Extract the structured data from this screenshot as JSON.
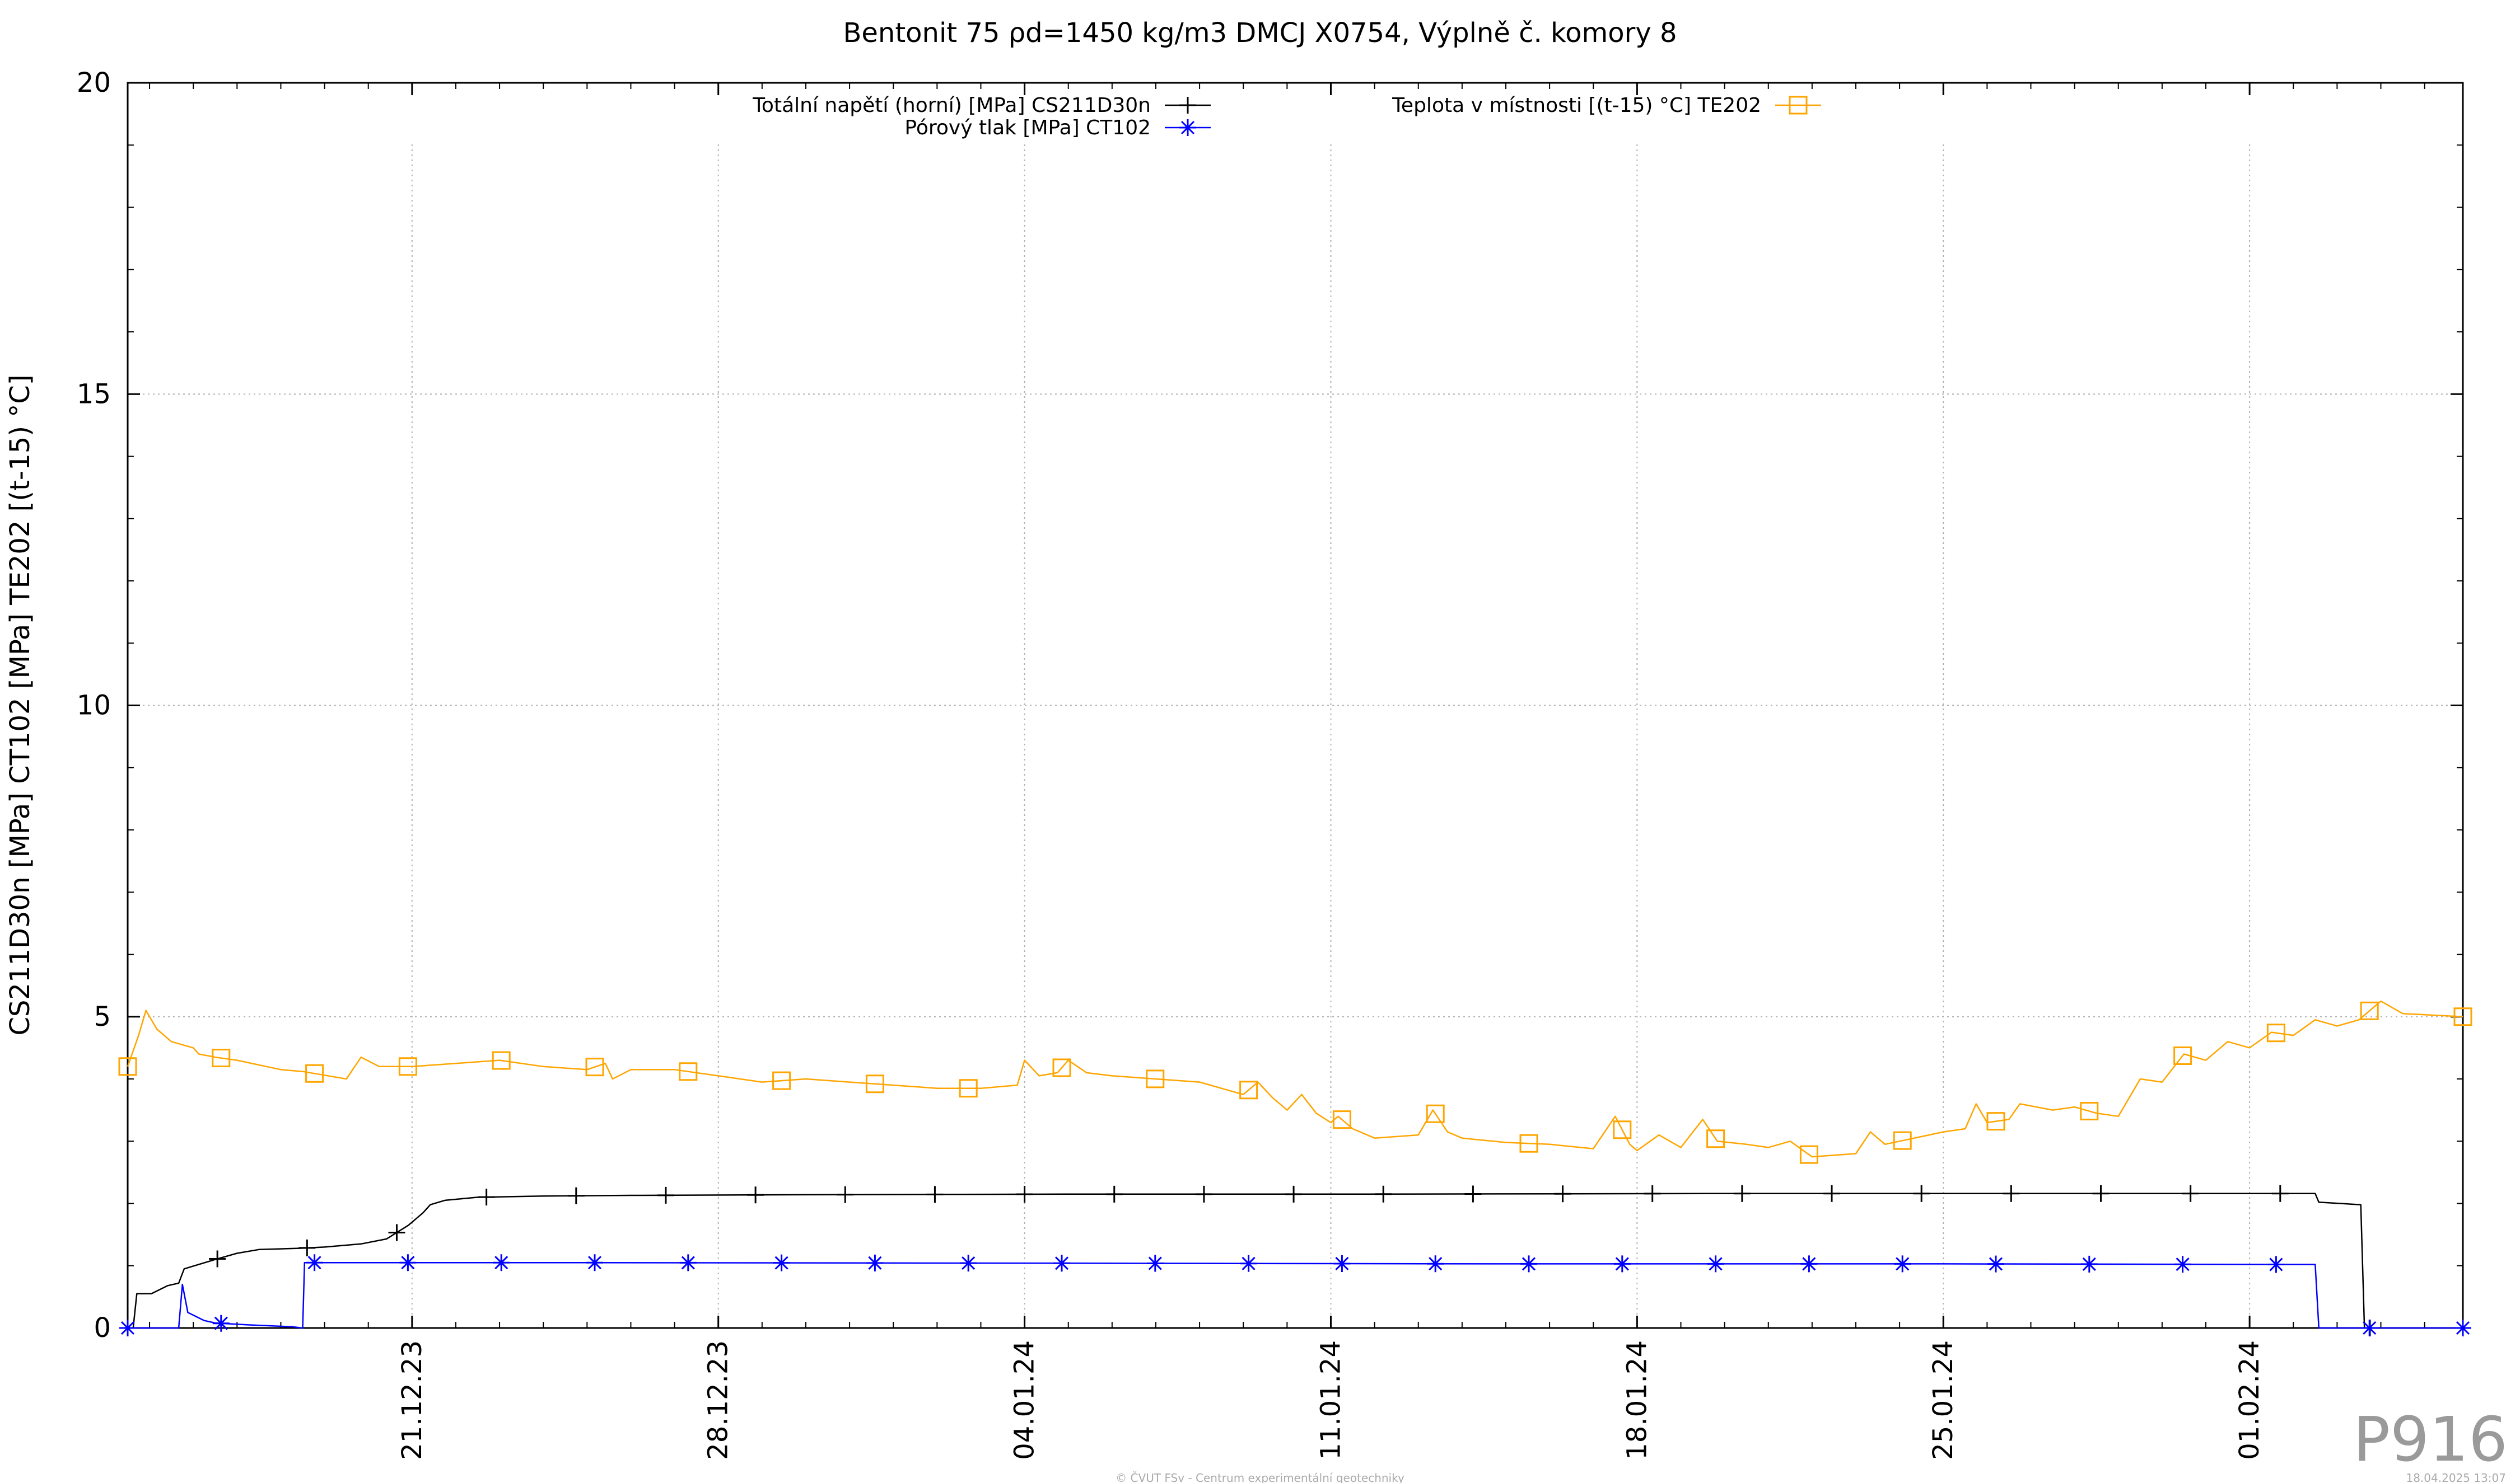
{
  "chart_data": {
    "type": "line",
    "title": "Bentonit 75 ρd=1450 kg/m3 DMCJ X0754, Výplně č. komory 8",
    "ylabel": "CS211D30n [MPa] CT102 [MPa] TE202 [(t-15) °C]",
    "ylim": [
      0,
      20
    ],
    "yticks": [
      "0",
      "5",
      "10",
      "15",
      "20"
    ],
    "xlim": [
      "2023-12-14T12:00",
      "2024-02-05T21:00"
    ],
    "xticks": [
      {
        "date": "2023-12-21",
        "label": "21.12.23"
      },
      {
        "date": "2023-12-28",
        "label": "28.12.23"
      },
      {
        "date": "2024-01-04",
        "label": "04.01.24"
      },
      {
        "date": "2024-01-11",
        "label": "11.01.24"
      },
      {
        "date": "2024-01-18",
        "label": "18.01.24"
      },
      {
        "date": "2024-01-25",
        "label": "25.01.24"
      },
      {
        "date": "2024-02-01",
        "label": "01.02.24"
      }
    ],
    "grid": true,
    "legend_position": "top",
    "series": [
      {
        "name": "Totální napětí (horní) [MPa] CS211D30n",
        "color": "#000000",
        "marker": "plus",
        "points": [
          [
            "2023-12-14T12:00",
            0.0
          ],
          [
            "2023-12-14T15:00",
            0.0
          ],
          [
            "2023-12-14T17:00",
            0.55
          ],
          [
            "2023-12-15T01:00",
            0.55
          ],
          [
            "2023-12-15T10:00",
            0.68
          ],
          [
            "2023-12-15T16:00",
            0.72
          ],
          [
            "2023-12-15T19:00",
            0.95
          ],
          [
            "2023-12-16T12:00",
            1.1
          ],
          [
            "2023-12-17T00:00",
            1.2
          ],
          [
            "2023-12-17T12:00",
            1.26
          ],
          [
            "2023-12-18T10:00",
            1.28
          ],
          [
            "2023-12-19T00:00",
            1.3
          ],
          [
            "2023-12-19T20:00",
            1.35
          ],
          [
            "2023-12-20T10:00",
            1.43
          ],
          [
            "2023-12-20T22:00",
            1.65
          ],
          [
            "2023-12-21T06:00",
            1.85
          ],
          [
            "2023-12-21T10:00",
            1.98
          ],
          [
            "2023-12-21T18:00",
            2.05
          ],
          [
            "2023-12-22T12:00",
            2.1
          ],
          [
            "2023-12-24T00:00",
            2.12
          ],
          [
            "2023-12-26T00:00",
            2.13
          ],
          [
            "2023-12-30T00:00",
            2.14
          ],
          [
            "2024-01-05T00:00",
            2.15
          ],
          [
            "2024-01-12T00:00",
            2.15
          ],
          [
            "2024-01-20T00:00",
            2.16
          ],
          [
            "2024-01-28T00:00",
            2.16
          ],
          [
            "2024-02-01T12:00",
            2.16
          ],
          [
            "2024-02-02T12:00",
            2.16
          ],
          [
            "2024-02-02T14:00",
            2.02
          ],
          [
            "2024-02-03T13:00",
            1.98
          ],
          [
            "2024-02-03T15:00",
            0.0
          ],
          [
            "2024-02-03T18:00",
            0.0
          ]
        ]
      },
      {
        "name": "Pórový tlak [MPa] CT102",
        "color": "#0000ff",
        "marker": "star",
        "points": [
          [
            "2023-12-14T12:00",
            0.0
          ],
          [
            "2023-12-15T12:00",
            0.0
          ],
          [
            "2023-12-15T16:00",
            0.0
          ],
          [
            "2023-12-15T18:00",
            0.7
          ],
          [
            "2023-12-15T21:00",
            0.25
          ],
          [
            "2023-12-16T06:00",
            0.12
          ],
          [
            "2023-12-16T12:00",
            0.08
          ],
          [
            "2023-12-17T06:00",
            0.05
          ],
          [
            "2023-12-18T06:00",
            0.02
          ],
          [
            "2023-12-18T12:00",
            0.0
          ],
          [
            "2023-12-18T13:00",
            1.05
          ],
          [
            "2023-12-25T00:00",
            1.05
          ],
          [
            "2024-01-05T00:00",
            1.04
          ],
          [
            "2024-01-15T00:00",
            1.03
          ],
          [
            "2024-01-25T00:00",
            1.03
          ],
          [
            "2024-02-01T12:00",
            1.02
          ],
          [
            "2024-02-02T12:00",
            1.02
          ],
          [
            "2024-02-02T14:00",
            0.0
          ],
          [
            "2024-02-05T21:00",
            0.0
          ]
        ]
      },
      {
        "name": "Teplota v místnosti [(t-15) °C] TE202",
        "color": "#ffa500",
        "marker": "square",
        "points": [
          [
            "2023-12-14T12:00",
            4.2
          ],
          [
            "2023-12-14T18:00",
            4.7
          ],
          [
            "2023-12-14T22:00",
            5.1
          ],
          [
            "2023-12-15T04:00",
            4.8
          ],
          [
            "2023-12-15T12:00",
            4.6
          ],
          [
            "2023-12-16T00:00",
            4.5
          ],
          [
            "2023-12-16T03:00",
            4.4
          ],
          [
            "2023-12-16T12:00",
            4.35
          ],
          [
            "2023-12-17T00:00",
            4.3
          ],
          [
            "2023-12-18T00:00",
            4.15
          ],
          [
            "2023-12-18T12:00",
            4.12
          ],
          [
            "2023-12-19T12:00",
            4.0
          ],
          [
            "2023-12-19T20:00",
            4.35
          ],
          [
            "2023-12-20T06:00",
            4.2
          ],
          [
            "2023-12-21T00:00",
            4.2
          ],
          [
            "2023-12-22T00:00",
            4.25
          ],
          [
            "2023-12-23T00:00",
            4.3
          ],
          [
            "2023-12-24T00:00",
            4.2
          ],
          [
            "2023-12-25T00:00",
            4.15
          ],
          [
            "2023-12-25T10:00",
            4.25
          ],
          [
            "2023-12-25T14:00",
            4.0
          ],
          [
            "2023-12-26T00:00",
            4.15
          ],
          [
            "2023-12-27T00:00",
            4.15
          ],
          [
            "2023-12-28T00:00",
            4.05
          ],
          [
            "2023-12-29T00:00",
            3.95
          ],
          [
            "2023-12-30T00:00",
            4.0
          ],
          [
            "2023-12-31T00:00",
            3.95
          ],
          [
            "2024-01-01T00:00",
            3.9
          ],
          [
            "2024-01-02T00:00",
            3.85
          ],
          [
            "2024-01-03T00:00",
            3.85
          ],
          [
            "2024-01-03T20:00",
            3.9
          ],
          [
            "2024-01-04T00:00",
            4.3
          ],
          [
            "2024-01-04T08:00",
            4.05
          ],
          [
            "2024-01-04T18:00",
            4.1
          ],
          [
            "2024-01-05T00:00",
            4.3
          ],
          [
            "2024-01-05T10:00",
            4.1
          ],
          [
            "2024-01-06T00:00",
            4.05
          ],
          [
            "2024-01-07T00:00",
            4.0
          ],
          [
            "2024-01-08T00:00",
            3.95
          ],
          [
            "2024-01-09T00:00",
            3.75
          ],
          [
            "2024-01-09T08:00",
            3.95
          ],
          [
            "2024-01-09T16:00",
            3.7
          ],
          [
            "2024-01-10T00:00",
            3.5
          ],
          [
            "2024-01-10T08:00",
            3.75
          ],
          [
            "2024-01-10T16:00",
            3.45
          ],
          [
            "2024-01-11T00:00",
            3.3
          ],
          [
            "2024-01-11T04:00",
            3.4
          ],
          [
            "2024-01-11T12:00",
            3.2
          ],
          [
            "2024-01-12T00:00",
            3.05
          ],
          [
            "2024-01-13T00:00",
            3.1
          ],
          [
            "2024-01-13T08:00",
            3.5
          ],
          [
            "2024-01-13T16:00",
            3.15
          ],
          [
            "2024-01-14T00:00",
            3.05
          ],
          [
            "2024-01-15T00:00",
            2.98
          ],
          [
            "2024-01-16T00:00",
            2.95
          ],
          [
            "2024-01-17T00:00",
            2.88
          ],
          [
            "2024-01-17T12:00",
            3.4
          ],
          [
            "2024-01-17T20:00",
            2.95
          ],
          [
            "2024-01-18T00:00",
            2.85
          ],
          [
            "2024-01-18T12:00",
            3.1
          ],
          [
            "2024-01-19T00:00",
            2.9
          ],
          [
            "2024-01-19T12:00",
            3.35
          ],
          [
            "2024-01-19T20:00",
            3.0
          ],
          [
            "2024-01-20T12:00",
            2.95
          ],
          [
            "2024-01-21T00:00",
            2.9
          ],
          [
            "2024-01-21T12:00",
            3.0
          ],
          [
            "2024-01-22T00:00",
            2.75
          ],
          [
            "2024-01-23T00:00",
            2.8
          ],
          [
            "2024-01-23T08:00",
            3.15
          ],
          [
            "2024-01-23T16:00",
            2.95
          ],
          [
            "2024-01-24T00:00",
            3.0
          ],
          [
            "2024-01-25T00:00",
            3.15
          ],
          [
            "2024-01-25T12:00",
            3.2
          ],
          [
            "2024-01-25T18:00",
            3.6
          ],
          [
            "2024-01-26T00:00",
            3.3
          ],
          [
            "2024-01-26T12:00",
            3.35
          ],
          [
            "2024-01-26T18:00",
            3.6
          ],
          [
            "2024-01-27T12:00",
            3.5
          ],
          [
            "2024-01-28T00:00",
            3.55
          ],
          [
            "2024-01-28T12:00",
            3.45
          ],
          [
            "2024-01-29T00:00",
            3.4
          ],
          [
            "2024-01-29T12:00",
            4.0
          ],
          [
            "2024-01-30T00:00",
            3.95
          ],
          [
            "2024-01-30T12:00",
            4.4
          ],
          [
            "2024-01-31T00:00",
            4.3
          ],
          [
            "2024-01-31T12:00",
            4.6
          ],
          [
            "2024-02-01T00:00",
            4.5
          ],
          [
            "2024-02-01T12:00",
            4.75
          ],
          [
            "2024-02-02T00:00",
            4.7
          ],
          [
            "2024-02-02T12:00",
            4.95
          ],
          [
            "2024-02-03T00:00",
            4.85
          ],
          [
            "2024-02-03T12:00",
            4.95
          ],
          [
            "2024-02-04T00:00",
            5.25
          ],
          [
            "2024-02-04T12:00",
            5.05
          ],
          [
            "2024-02-05T21:00",
            5.0
          ]
        ]
      }
    ]
  },
  "watermark": "P916",
  "footer": {
    "credit": "© ČVUT FSv - Centrum experimentální geotechniky",
    "timestamp": "18.04.2025 13:07"
  }
}
